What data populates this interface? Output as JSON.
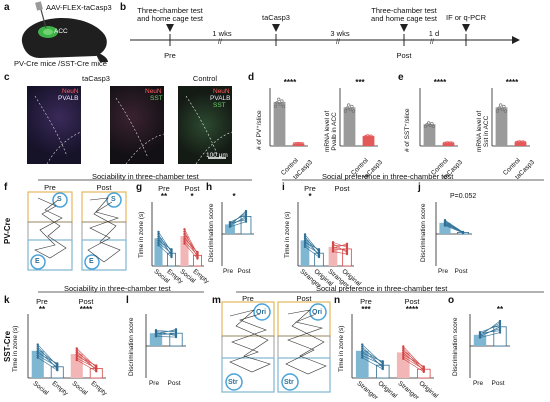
{
  "panels": [
    "a",
    "b",
    "c",
    "d",
    "e",
    "f",
    "g",
    "h",
    "i",
    "j",
    "k",
    "l",
    "m",
    "n",
    "o"
  ],
  "colors": {
    "pre": "#7fb6d2",
    "post": "#f2b6b6",
    "pre_line": "#2e6f96",
    "post_line": "#d24646",
    "control": "#9a9a9a",
    "tacasp": "#e45858"
  },
  "a": {
    "virus": "AAV-FLEX-taCasp3",
    "region": "ACC",
    "mice": "PV-Cre mice /SST-Cre mice"
  },
  "b": {
    "event1": "Three-chamber test\nand home cage test",
    "event2": "taCasp3",
    "event3": "Three-chamber test\nand home cage test",
    "event4": "IF or q-PCR",
    "gap1": "1 wks",
    "gap2": "3 wks",
    "gap3": "1 d",
    "pre": "Pre",
    "post": "Post"
  },
  "c": {
    "title1": "taCasp3",
    "title2": "Control",
    "stain1": "NeuN",
    "stain2": "PVALB",
    "stain3": "SST",
    "scale": "100 μm"
  },
  "d": {
    "ylabel1": "# of PV⁺/slice",
    "ylabel2": "mRNA level of\nPvalb in ACC",
    "sig1": "****",
    "sig2": "***",
    "control": "Control",
    "tacasp": "taCasp3"
  },
  "e": {
    "ylabel1": "# of SST⁺/slice",
    "ylabel2": "mRNA level of\nSst in ACC",
    "sig1": "****",
    "sig2": "****",
    "control": "Control",
    "tacasp": "taCasp3"
  },
  "row2": {
    "left_title": "Sociability in three-chamber test",
    "right_title": "Social preference in three-chamber test",
    "side": "PV-Cre"
  },
  "row3": {
    "left_title": "Sociability in three-chamber test",
    "right_title": "Social preference in three-chamber test",
    "side": "SST-Cre"
  },
  "f": {
    "pre": "Pre",
    "post": "Post",
    "s": "S",
    "e": "E"
  },
  "m": {
    "pre": "Pre",
    "post": "Post",
    "ori": "Ori",
    "str": "Str"
  },
  "g": {
    "pre": "Pre",
    "post": "Post",
    "ylabel": "Time in zone (s)",
    "sig_pre": "**",
    "sig_post": "*",
    "cats": [
      "Social",
      "Empty",
      "Social",
      "Empty"
    ]
  },
  "h": {
    "ylabel": "Discrimination score",
    "sig": "*",
    "cats": [
      "Pre",
      "Post"
    ]
  },
  "i": {
    "pre": "Pre",
    "post": "Post",
    "ylabel": "Time in zone (s)",
    "sig_pre": "*",
    "cats": [
      "Stranger",
      "Original",
      "Stranger",
      "Original"
    ]
  },
  "j": {
    "ylabel": "Discrimination score",
    "pval": "P=0.052",
    "cats": [
      "Pre",
      "Post"
    ]
  },
  "k": {
    "pre": "Pre",
    "post": "Post",
    "ylabel": "Time in zone (s)",
    "sig_pre": "**",
    "sig_post": "****",
    "cats": [
      "Social",
      "Empty",
      "Social",
      "Empty"
    ]
  },
  "l": {
    "ylabel": "Discrimination score",
    "cats": [
      "Pre",
      "Post"
    ]
  },
  "n": {
    "pre": "Pre",
    "post": "Post",
    "ylabel": "Time in zone (s)",
    "sig_pre": "***",
    "sig_post": "****",
    "cats": [
      "Stranger",
      "Original",
      "Stranger",
      "Original"
    ]
  },
  "o": {
    "ylabel": "Discrimination score",
    "sig": "**",
    "cats": [
      "Pre",
      "Post"
    ]
  },
  "chart_data": [
    {
      "panel": "d-left",
      "type": "bar",
      "categories": [
        "Control",
        "taCasp3"
      ],
      "values": [
        38,
        2
      ],
      "ylim": [
        0,
        50
      ]
    },
    {
      "panel": "d-right",
      "type": "bar",
      "categories": [
        "Control",
        "taCasp3"
      ],
      "values": [
        1.0,
        0.25
      ],
      "ylim": [
        0,
        1.5
      ]
    },
    {
      "panel": "e-left",
      "type": "bar",
      "categories": [
        "Control",
        "taCasp3"
      ],
      "values": [
        15,
        2
      ],
      "ylim": [
        0,
        40
      ]
    },
    {
      "panel": "e-right",
      "type": "bar",
      "categories": [
        "Control",
        "taCasp3"
      ],
      "values": [
        1.0,
        0.1
      ],
      "ylim": [
        0,
        1.5
      ]
    },
    {
      "panel": "g",
      "type": "bar",
      "categories": [
        "Social",
        "Empty",
        "Social",
        "Empty"
      ],
      "values": [
        130,
        60,
        140,
        50
      ],
      "ylim": [
        0,
        300
      ]
    },
    {
      "panel": "h",
      "type": "bar",
      "categories": [
        "Pre",
        "Post"
      ],
      "values": [
        0.3,
        0.55
      ],
      "ylim": [
        -1,
        1
      ]
    },
    {
      "panel": "i",
      "type": "bar",
      "categories": [
        "Stranger",
        "Original",
        "Stranger",
        "Original"
      ],
      "values": [
        120,
        60,
        90,
        80
      ],
      "ylim": [
        0,
        300
      ]
    },
    {
      "panel": "j",
      "type": "bar",
      "categories": [
        "Pre",
        "Post"
      ],
      "values": [
        0.35,
        0.05
      ],
      "ylim": [
        -1,
        1
      ]
    },
    {
      "panel": "k",
      "type": "bar",
      "categories": [
        "Social",
        "Empty",
        "Social",
        "Empty"
      ],
      "values": [
        170,
        70,
        150,
        60
      ],
      "ylim": [
        0,
        400
      ]
    },
    {
      "panel": "l",
      "type": "bar",
      "categories": [
        "Pre",
        "Post"
      ],
      "values": [
        0.4,
        0.4
      ],
      "ylim": [
        -1,
        1
      ]
    },
    {
      "panel": "n",
      "type": "bar",
      "categories": [
        "Stranger",
        "Original",
        "Stranger",
        "Original"
      ],
      "values": [
        170,
        80,
        160,
        55
      ],
      "ylim": [
        0,
        400
      ]
    },
    {
      "panel": "o",
      "type": "bar",
      "categories": [
        "Pre",
        "Post"
      ],
      "values": [
        0.35,
        0.6
      ],
      "ylim": [
        -1,
        1
      ]
    }
  ]
}
